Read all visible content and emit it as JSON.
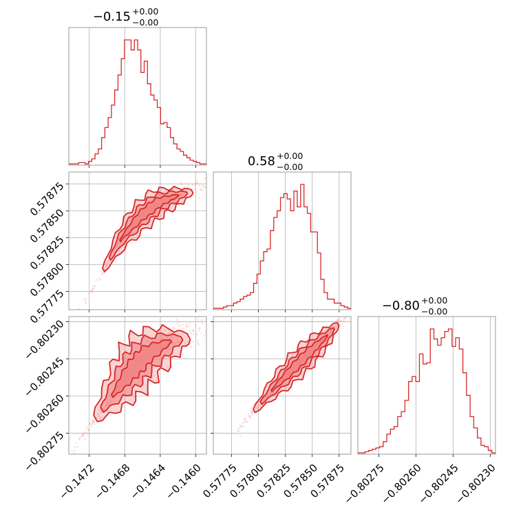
{
  "colors": {
    "accent": "#d62728",
    "fill": "#f08080",
    "scatter": "#f4b0b0",
    "grid": "#b0b0b0",
    "frame": "#7f7f7f"
  },
  "chart_data": {
    "type": "corner",
    "grid": true,
    "parameters": [
      {
        "title_value": "−0.15",
        "title_plus": "+0.00",
        "title_minus": "−0.00",
        "range": [
          -0.14743,
          -0.14588
        ],
        "ticks": [
          -0.1472,
          -0.1468,
          -0.1464,
          -0.146
        ],
        "tick_labels": [
          "−0.1472",
          "−0.1468",
          "−0.1464",
          "−0.1460"
        ],
        "histogram": [
          1,
          1,
          1,
          2,
          2,
          1,
          3,
          5,
          9,
          13,
          22,
          30,
          38,
          48,
          60,
          72,
          85,
          100,
          100,
          92,
          100,
          92,
          74,
          83,
          65,
          56,
          52,
          46,
          33,
          34,
          30,
          22,
          17,
          13,
          11,
          8,
          6,
          4,
          3,
          2,
          1,
          1
        ]
      },
      {
        "title_value": "0.58",
        "title_plus": "+0.00",
        "title_minus": "−0.00",
        "range": [
          0.57758,
          0.57886
        ],
        "ticks": [
          0.57775,
          0.578,
          0.57825,
          0.5785,
          0.57875
        ],
        "tick_labels": [
          "0.57775",
          "0.57800",
          "0.57825",
          "0.57850",
          "0.57875"
        ],
        "histogram": [
          1,
          1,
          1,
          2,
          3,
          3,
          5,
          6,
          8,
          10,
          11,
          13,
          20,
          27,
          37,
          44,
          46,
          60,
          70,
          75,
          85,
          88,
          84,
          75,
          90,
          78,
          95,
          78,
          73,
          59,
          59,
          43,
          23,
          13,
          8,
          8,
          5,
          5,
          3,
          2,
          1
        ]
      },
      {
        "title_value": "−0.80",
        "title_plus": "+0.00",
        "title_minus": "−0.00",
        "range": [
          -0.802835,
          -0.802279
        ],
        "ticks": [
          -0.80275,
          -0.8026,
          -0.80245,
          -0.8023
        ],
        "tick_labels": [
          "−0.80275",
          "−0.80260",
          "−0.80245",
          "−0.80230"
        ],
        "histogram": [
          1,
          1,
          2,
          3,
          4,
          5,
          6,
          10,
          16,
          20,
          22,
          30,
          34,
          43,
          58,
          62,
          58,
          80,
          72,
          73,
          100,
          92,
          87,
          93,
          98,
          100,
          86,
          93,
          84,
          65,
          47,
          30,
          21,
          13,
          7,
          6,
          3,
          1
        ]
      }
    ],
    "pairs": [
      {
        "x_param": 0,
        "y_param": 1,
        "x": [
          -0.14704,
          -0.14683,
          -0.14662,
          -0.14642,
          -0.14621,
          -0.14604
        ],
        "y": [
          0.57795,
          0.57825,
          0.57845,
          0.57858,
          0.57864,
          0.57868
        ],
        "spread": 5e-05
      },
      {
        "x_param": 0,
        "y_param": 2,
        "x": [
          -0.14713,
          -0.14692,
          -0.14673,
          -0.14655,
          -0.1463,
          -0.14608
        ],
        "y": [
          -0.80269,
          -0.80259,
          -0.8025,
          -0.80243,
          -0.80238,
          -0.80236
        ],
        "spread": 4e-05
      },
      {
        "x_param": 1,
        "y_param": 2,
        "x": [
          0.57796,
          0.57814,
          0.57832,
          0.57848,
          0.57863,
          0.57874
        ],
        "y": [
          -0.80266,
          -0.80257,
          -0.80249,
          -0.80242,
          -0.80236,
          -0.80231
        ],
        "spread": 2e-05
      }
    ]
  }
}
